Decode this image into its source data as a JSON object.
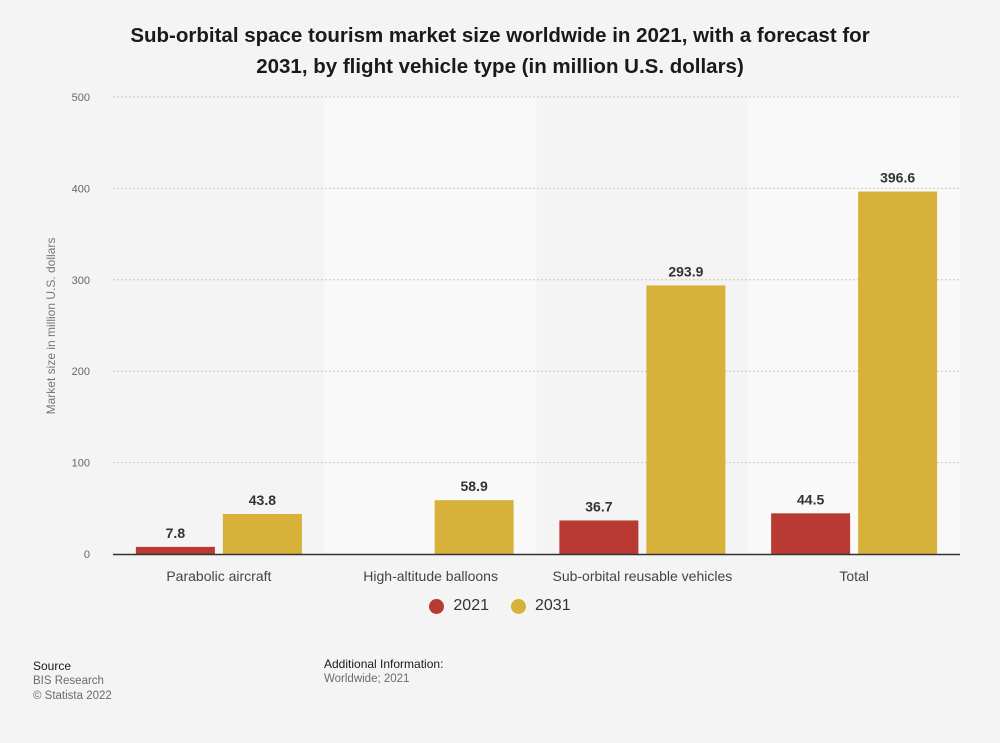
{
  "chart_data": {
    "type": "bar",
    "title": "Sub-orbital space tourism market size worldwide in 2021, with a forecast for 2031, by flight vehicle type (in million U.S. dollars)",
    "title_lines": [
      "Sub-orbital space tourism market size worldwide in 2021, with a forecast for",
      "2031, by flight vehicle type (in million U.S. dollars)"
    ],
    "xlabel": "",
    "ylabel": "Market size in million U.S. dollars",
    "ylim": [
      0,
      500
    ],
    "yticks": [
      0,
      100,
      200,
      300,
      400,
      500
    ],
    "grid": true,
    "legend_position": "bottom-center",
    "categories": [
      "Parabolic aircraft",
      "High-altitude balloons",
      "Sub-orbital reusable vehicles",
      "Total"
    ],
    "series": [
      {
        "name": "2021",
        "color": "#b93a32",
        "values": [
          7.8,
          null,
          36.7,
          44.5
        ],
        "labels": [
          "7.8",
          "",
          "36.7",
          "44.5"
        ]
      },
      {
        "name": "2031",
        "color": "#d8b13a",
        "values": [
          43.8,
          58.9,
          293.9,
          396.6
        ],
        "labels": [
          "43.8",
          "58.9",
          "293.9",
          "396.6"
        ]
      }
    ]
  },
  "footer": {
    "source_heading": "Source",
    "source_name": "BIS Research",
    "copyright": "© Statista 2022",
    "info_heading": "Additional Information:",
    "info_text": "Worldwide; 2021"
  }
}
